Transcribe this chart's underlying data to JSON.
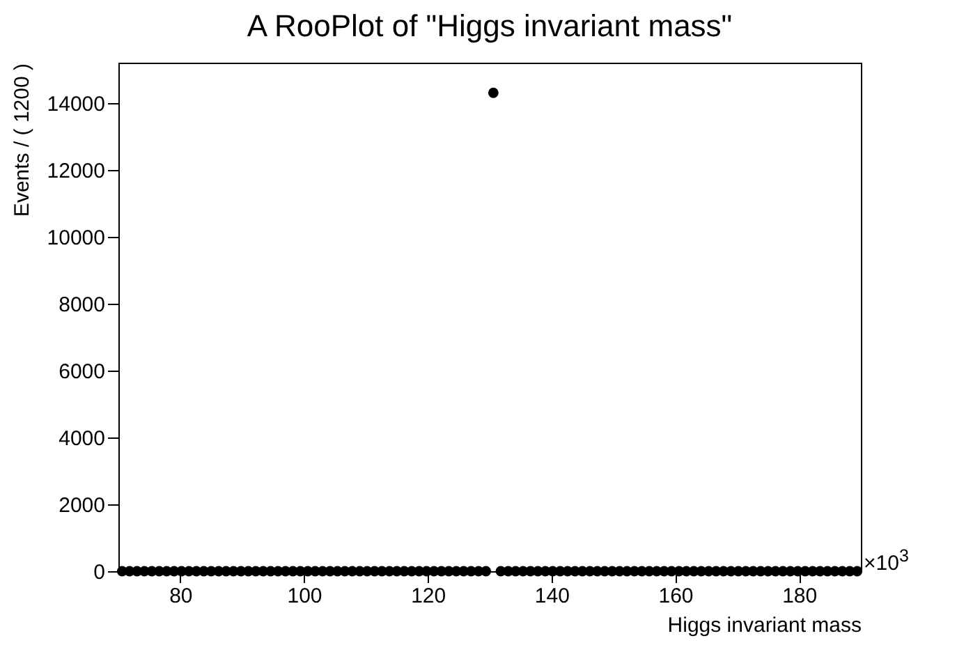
{
  "chart_data": {
    "type": "scatter",
    "title": "A RooPlot of \"Higgs invariant mass\"",
    "xlabel": "Higgs invariant mass",
    "ylabel": "Events / ( 1200 )",
    "annotations": [
      "×10$^{3}$"
    ],
    "x": [
      70.6,
      71.8,
      73,
      74.2,
      75.4,
      76.6,
      77.8,
      79,
      80.2,
      81.4,
      82.6,
      83.8,
      85,
      86.2,
      87.4,
      88.6,
      89.8,
      91,
      92.2,
      93.4,
      94.6,
      95.8,
      97,
      98.2,
      99.4,
      100.6,
      101.8,
      103,
      104.2,
      105.4,
      106.6,
      107.8,
      109,
      110.2,
      111.4,
      112.6,
      113.8,
      115,
      116.2,
      117.4,
      118.6,
      119.8,
      121,
      122.2,
      123.4,
      124.6,
      125.8,
      127,
      128.2,
      129.4,
      130.6,
      131.8,
      133,
      134.2,
      135.4,
      136.6,
      137.8,
      139,
      140.2,
      141.4,
      142.6,
      143.8,
      145,
      146.2,
      147.4,
      148.6,
      149.8,
      151,
      152.2,
      153.4,
      154.6,
      155.8,
      157,
      158.2,
      159.4,
      160.6,
      161.8,
      163,
      164.2,
      165.4,
      166.6,
      167.8,
      169,
      170.2,
      171.4,
      172.6,
      173.8,
      175,
      176.2,
      177.4,
      178.6,
      179.8,
      181,
      182.2,
      183.4,
      184.6,
      185.8,
      187,
      188.2,
      189.4
    ],
    "series": [
      {
        "color": "#000000",
        "values": [
          0,
          0,
          0,
          0,
          0,
          0,
          0,
          0,
          0,
          0,
          0,
          0,
          0,
          0,
          0,
          0,
          0,
          0,
          0,
          0,
          0,
          0,
          0,
          0,
          0,
          0,
          0,
          0,
          0,
          0,
          0,
          0,
          0,
          0,
          0,
          0,
          0,
          0,
          0,
          0,
          0,
          0,
          0,
          0,
          0,
          0,
          0,
          0,
          0,
          0,
          14300,
          0,
          0,
          0,
          0,
          0,
          0,
          0,
          0,
          0,
          0,
          0,
          0,
          0,
          0,
          0,
          0,
          0,
          0,
          0,
          0,
          0,
          0,
          0,
          0,
          0,
          0,
          0,
          0,
          0,
          0,
          0,
          0,
          0,
          0,
          0,
          0,
          0,
          0,
          0,
          0,
          0,
          0,
          0,
          0,
          0,
          0,
          0,
          0,
          0
        ]
      }
    ],
    "xlim": [
      70,
      190
    ],
    "xticks": [
      80,
      100,
      120,
      140,
      160,
      180
    ],
    "ylim": [
      0,
      15200
    ],
    "yticks": [
      0,
      2000,
      4000,
      6000,
      8000,
      10000,
      12000,
      14000
    ],
    "grid": false,
    "marker": "circle"
  }
}
